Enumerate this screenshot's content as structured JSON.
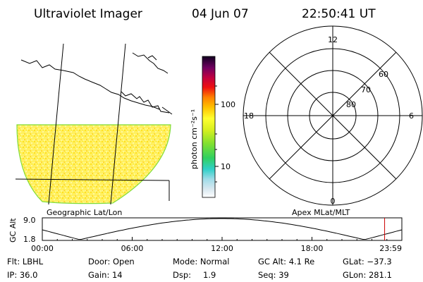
{
  "header": {
    "title": "Ultraviolet Imager",
    "date": "04 Jun 07",
    "time": "22:50:41 UT"
  },
  "colors": {
    "line": "#000000",
    "image_outline": "#7fdc3a",
    "time_marker": "#cc0000"
  },
  "geo_panel": {
    "label": "Geographic Lat/Lon"
  },
  "colorbar": {
    "label": "photon cm⁻²s⁻¹",
    "tick_100": "100",
    "tick_10": "10"
  },
  "polar_panel": {
    "label": "Apex MLat/MLT",
    "mlt_12": "12",
    "mlt_18": "18",
    "mlt_6": "6",
    "mlt_0": "0",
    "lat_60": "60",
    "lat_70": "70",
    "lat_80": "80"
  },
  "altitude_plot": {
    "ylabel": "GC Alt",
    "y_max": "9.0",
    "y_min": "1.8",
    "x_ticks": [
      "00:00",
      "06:00",
      "12:00",
      "18:00",
      "23:59"
    ],
    "current_time_hours": 22.85
  },
  "footer": {
    "filter": "Flt: LBHL",
    "ip": "IP: 36.0",
    "door": "Door: Open",
    "gain": "Gain: 14",
    "mode": "Mode: Normal",
    "dsp_label": "Dsp:",
    "dsp_value": "1.9",
    "gc_alt": "GC Alt: 4.1 Re",
    "seq": "Seq: 39",
    "glat": "GLat: −37.3",
    "glon": "GLon: 281.1"
  }
}
